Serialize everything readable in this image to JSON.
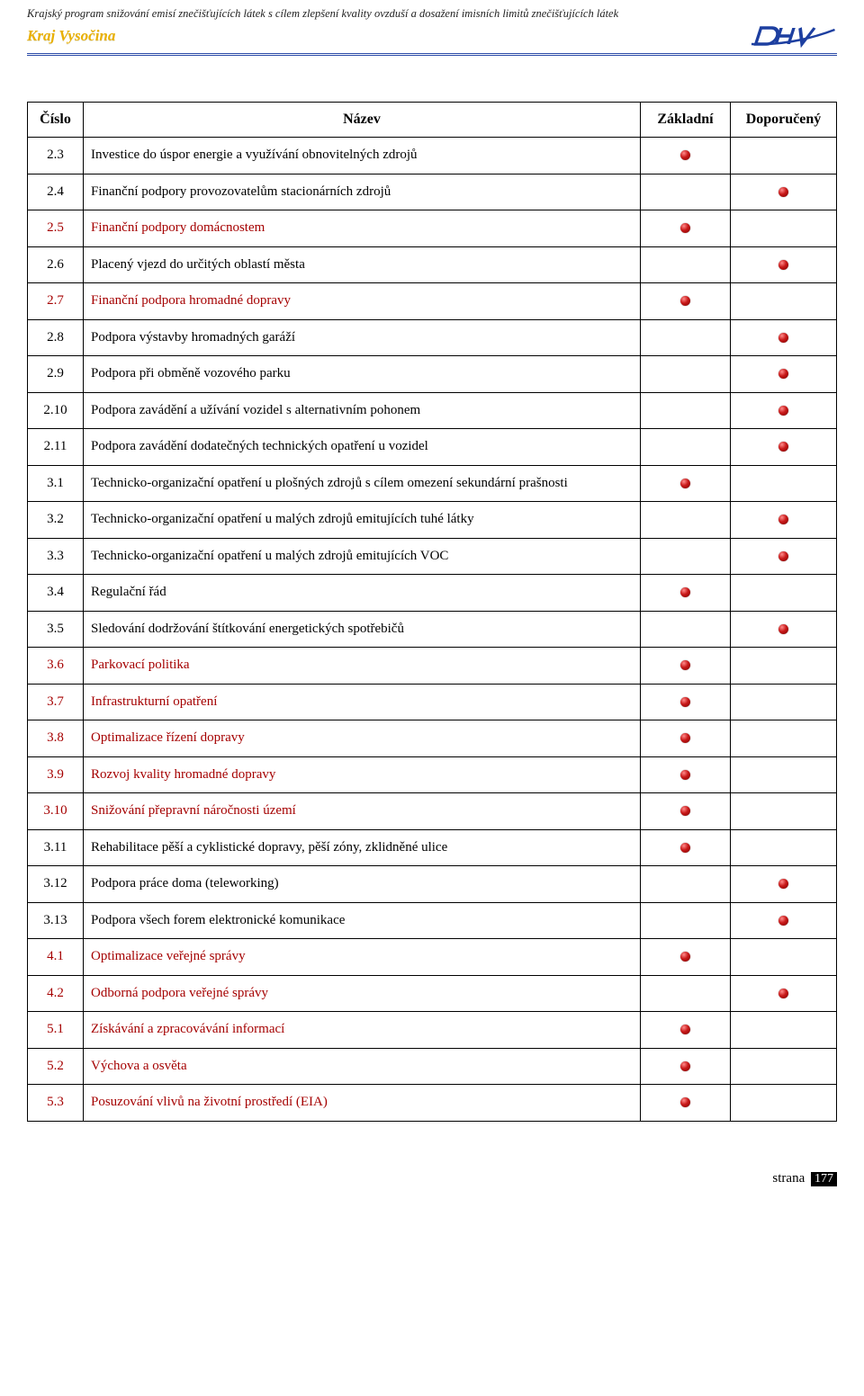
{
  "header": {
    "doc_title": "Krajský program snižování emisí znečišťujících látek s cílem zlepšení kvality ovzduší a dosažení imisních limitů znečišťujících látek",
    "region": "Kraj Vysočina",
    "logo": {
      "text": "DHV",
      "stroke": "#1d3fa0"
    }
  },
  "table": {
    "headers": {
      "num": "Číslo",
      "name": "Název",
      "basic": "Základní",
      "recommended": "Doporučený"
    },
    "rows": [
      {
        "num": "2.3",
        "name": "Investice do úspor energie a využívání obnovitelných zdrojů",
        "basic": true,
        "rec": false,
        "red": false
      },
      {
        "num": "2.4",
        "name": "Finanční podpory provozovatelům stacionárních zdrojů",
        "basic": false,
        "rec": true,
        "red": false
      },
      {
        "num": "2.5",
        "name": "Finanční podpory domácnostem",
        "basic": true,
        "rec": false,
        "red": true
      },
      {
        "num": "2.6",
        "name": "Placený vjezd do určitých oblastí města",
        "basic": false,
        "rec": true,
        "red": false
      },
      {
        "num": "2.7",
        "name": "Finanční podpora hromadné dopravy",
        "basic": true,
        "rec": false,
        "red": true
      },
      {
        "num": "2.8",
        "name": "Podpora výstavby hromadných garáží",
        "basic": false,
        "rec": true,
        "red": false
      },
      {
        "num": "2.9",
        "name": "Podpora při obměně vozového parku",
        "basic": false,
        "rec": true,
        "red": false
      },
      {
        "num": "2.10",
        "name": "Podpora zavádění a užívání vozidel s alternativním pohonem",
        "basic": false,
        "rec": true,
        "red": false
      },
      {
        "num": "2.11",
        "name": "Podpora zavádění dodatečných technických opatření u vozidel",
        "basic": false,
        "rec": true,
        "red": false
      },
      {
        "num": "3.1",
        "name": "Technicko-organizační opatření u plošných zdrojů s cílem omezení sekundární prašnosti",
        "basic": true,
        "rec": false,
        "red": false
      },
      {
        "num": "3.2",
        "name": "Technicko-organizační opatření u malých zdrojů emitujících tuhé látky",
        "basic": false,
        "rec": true,
        "red": false
      },
      {
        "num": "3.3",
        "name": "Technicko-organizační opatření u malých zdrojů emitujících VOC",
        "basic": false,
        "rec": true,
        "red": false
      },
      {
        "num": "3.4",
        "name": "Regulační řád",
        "basic": true,
        "rec": false,
        "red": false
      },
      {
        "num": "3.5",
        "name": "Sledování dodržování štítkování energetických spotřebičů",
        "basic": false,
        "rec": true,
        "red": false
      },
      {
        "num": "3.6",
        "name": "Parkovací politika",
        "basic": true,
        "rec": false,
        "red": true
      },
      {
        "num": "3.7",
        "name": "Infrastrukturní opatření",
        "basic": true,
        "rec": false,
        "red": true
      },
      {
        "num": "3.8",
        "name": "Optimalizace řízení dopravy",
        "basic": true,
        "rec": false,
        "red": true
      },
      {
        "num": "3.9",
        "name": "Rozvoj kvality hromadné dopravy",
        "basic": true,
        "rec": false,
        "red": true
      },
      {
        "num": "3.10",
        "name": "Snižování přepravní náročnosti území",
        "basic": true,
        "rec": false,
        "red": true
      },
      {
        "num": "3.11",
        "name": "Rehabilitace pěší a cyklistické dopravy, pěší zóny, zklidněné ulice",
        "basic": true,
        "rec": false,
        "red": false
      },
      {
        "num": "3.12",
        "name": "Podpora práce doma (teleworking)",
        "basic": false,
        "rec": true,
        "red": false
      },
      {
        "num": "3.13",
        "name": "Podpora všech forem elektronické komunikace",
        "basic": false,
        "rec": true,
        "red": false
      },
      {
        "num": "4.1",
        "name": "Optimalizace veřejné správy",
        "basic": true,
        "rec": false,
        "red": true
      },
      {
        "num": "4.2",
        "name": "Odborná podpora veřejné správy",
        "basic": false,
        "rec": true,
        "red": true
      },
      {
        "num": "5.1",
        "name": "Získávání a zpracovávání informací",
        "basic": true,
        "rec": false,
        "red": true
      },
      {
        "num": "5.2",
        "name": "Výchova a osvěta",
        "basic": true,
        "rec": false,
        "red": true
      },
      {
        "num": "5.3",
        "name": "Posuzování vlivů na životní prostředí (EIA)",
        "basic": true,
        "rec": false,
        "red": true
      }
    ]
  },
  "footer": {
    "label": "strana",
    "page": "177"
  }
}
